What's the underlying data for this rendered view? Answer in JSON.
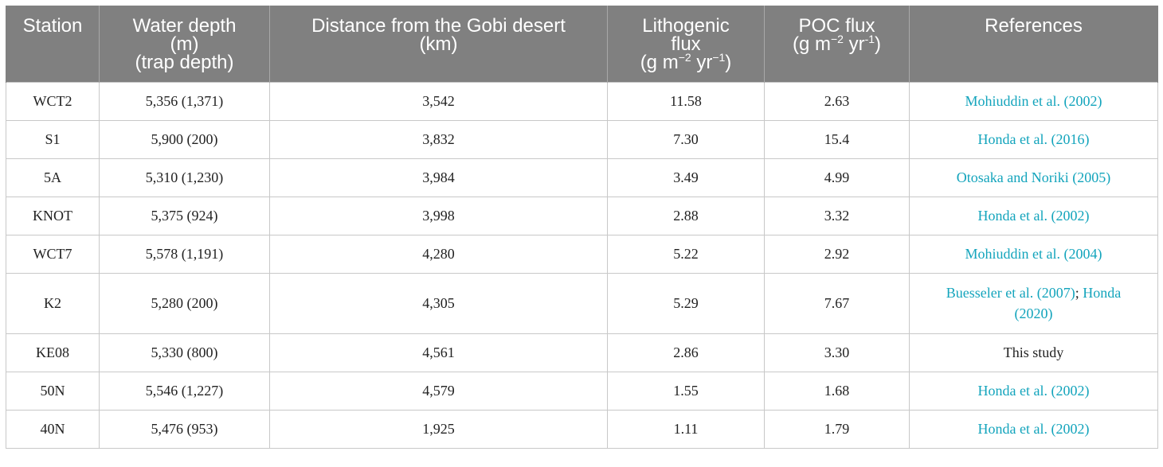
{
  "table": {
    "headers": {
      "station": "Station",
      "water_depth": [
        "Water depth",
        "(m)",
        "(trap depth)"
      ],
      "distance": [
        "Distance from the Gobi desert",
        "(km)"
      ],
      "lithogenic": {
        "line1": "Lithogenic",
        "line2": "flux",
        "unit_pre": "(g m",
        "exp1": "−2",
        "unit_mid": " yr",
        "exp2": "−1",
        "unit_post": ")"
      },
      "poc": {
        "line1": "POC flux",
        "unit_pre": "(g m",
        "exp1": "−2",
        "unit_mid": " yr",
        "exp2": "-1",
        "unit_post": ")"
      },
      "references": "References"
    },
    "rows": [
      {
        "station": "WCT2",
        "depth": "5,356 (1,371)",
        "distance": "3,542",
        "lithogenic": "11.58",
        "poc": "2.63",
        "ref": "Mohiuddin et al. (2002)"
      },
      {
        "station": "S1",
        "depth": "5,900 (200)",
        "distance": "3,832",
        "lithogenic": "7.30",
        "poc": "15.4",
        "ref": "Honda et al. (2016)"
      },
      {
        "station": "5A",
        "depth": "5,310 (1,230)",
        "distance": "3,984",
        "lithogenic": "3.49",
        "poc": "4.99",
        "ref": "Otosaka and Noriki (2005)"
      },
      {
        "station": "KNOT",
        "depth": "5,375 (924)",
        "distance": "3,998",
        "lithogenic": "2.88",
        "poc": "3.32",
        "ref": "Honda et al. (2002)"
      },
      {
        "station": "WCT7",
        "depth": "5,578 (1,191)",
        "distance": "4,280",
        "lithogenic": "5.22",
        "poc": "2.92",
        "ref": "Mohiuddin et al. (2004)"
      },
      {
        "station": "K2",
        "depth": "5,280 (200)",
        "distance": "4,305",
        "lithogenic": "5.29",
        "poc": "7.67",
        "ref_a": "Buesseler et al. (2007)",
        "ref_sep": ";",
        "ref_b_1": "Honda",
        "ref_b_2": "(2020)"
      },
      {
        "station": "KE08",
        "depth": "5,330 (800)",
        "distance": "4,561",
        "lithogenic": "2.86",
        "poc": "3.30",
        "ref": "This study"
      },
      {
        "station": "50N",
        "depth": "5,546 (1,227)",
        "distance": "4,579",
        "lithogenic": "1.55",
        "poc": "1.68",
        "ref": "Honda et al. (2002)"
      },
      {
        "station": "40N",
        "depth": "5,476 (953)",
        "distance": "1,925",
        "lithogenic": "1.11",
        "poc": "1.79",
        "ref": "Honda et al. (2002)"
      }
    ]
  }
}
